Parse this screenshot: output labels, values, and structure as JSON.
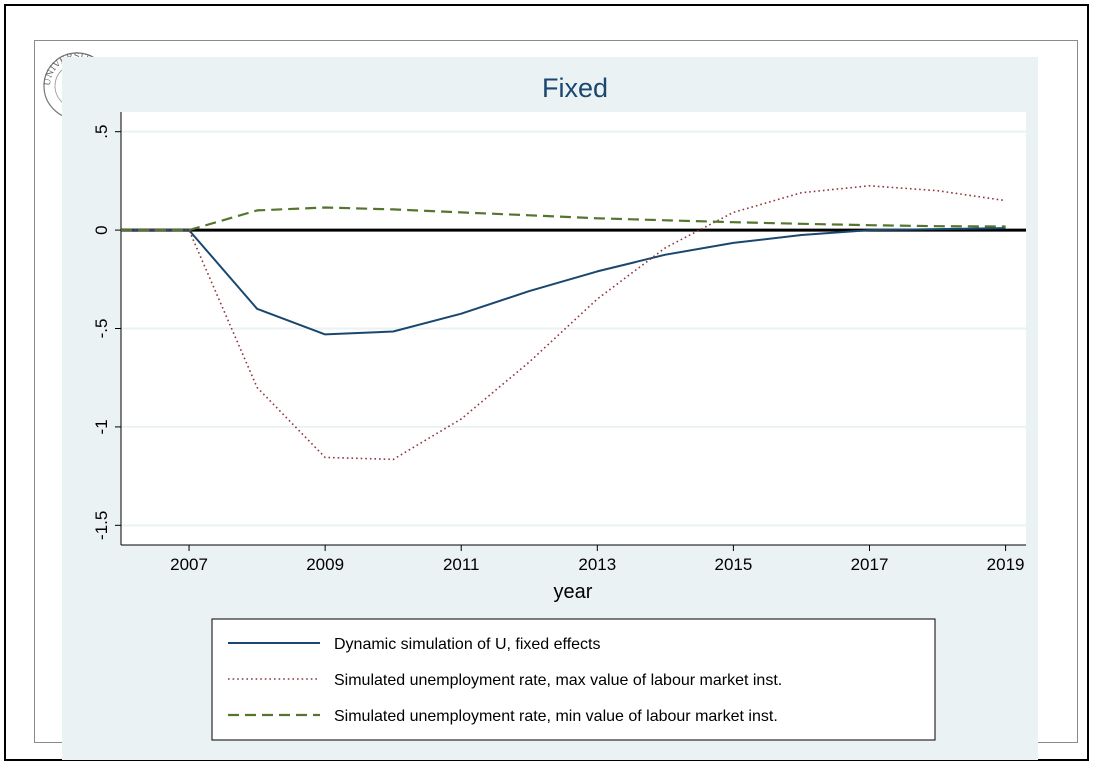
{
  "chart_data": {
    "type": "line",
    "title": "Fixed",
    "xlabel": "year",
    "ylabel": "",
    "xlim": [
      2006,
      2019.3
    ],
    "ylim": [
      -1.6,
      0.6
    ],
    "xticks": [
      2007,
      2009,
      2011,
      2013,
      2015,
      2017,
      2019
    ],
    "yticks": [
      0.5,
      0,
      -0.5,
      -1,
      -1.5
    ],
    "ytick_labels": [
      ".5",
      "0",
      "-.5",
      "-1",
      "-1.5"
    ],
    "grid": true,
    "zero_reference_line": true,
    "legend_position": "bottom",
    "x": [
      2006,
      2007,
      2008,
      2009,
      2010,
      2011,
      2012,
      2013,
      2014,
      2015,
      2016,
      2017,
      2018,
      2019
    ],
    "series": [
      {
        "name": "Dynamic simulation of U, fixed effects",
        "color": "#1a476f",
        "style": "solid",
        "values": [
          0,
          0,
          -0.4,
          -0.53,
          -0.515,
          -0.425,
          -0.31,
          -0.21,
          -0.125,
          -0.065,
          -0.025,
          0.0,
          0.005,
          0.01
        ]
      },
      {
        "name": "Simulated unemployment rate, max value of labour market inst.",
        "color": "#90353b",
        "style": "dotted",
        "values": [
          0,
          0,
          -0.8,
          -1.155,
          -1.165,
          -0.96,
          -0.67,
          -0.35,
          -0.09,
          0.09,
          0.19,
          0.225,
          0.2,
          0.15
        ]
      },
      {
        "name": "Simulated unemployment rate, min value of labour market inst.",
        "color": "#55752f",
        "style": "dashed",
        "values": [
          0,
          0,
          0.1,
          0.115,
          0.105,
          0.09,
          0.075,
          0.06,
          0.05,
          0.04,
          0.032,
          0.025,
          0.02,
          0.018
        ]
      }
    ]
  },
  "seal": {
    "text": "UNIVERSITAS"
  }
}
